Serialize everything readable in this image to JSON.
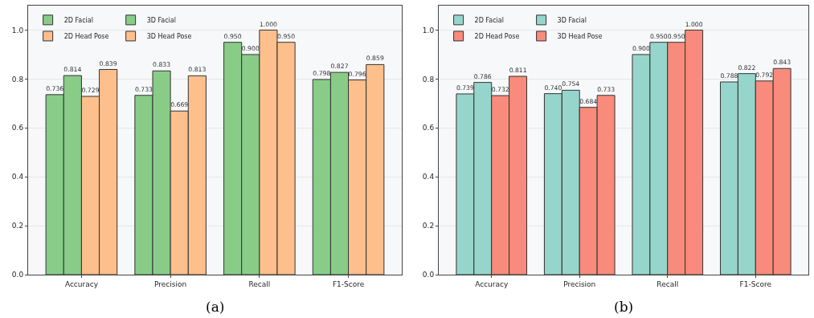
{
  "chart_data": [
    {
      "type": "bar",
      "categories": [
        "Accuracy",
        "Precision",
        "Recall",
        "F1-Score"
      ],
      "series": [
        {
          "name": "2D Facial",
          "color": "#88cc88",
          "values": [
            0.736,
            0.733,
            0.95,
            0.798
          ],
          "value_labels": [
            "0.736",
            "0.733",
            "0.950",
            "0.798"
          ]
        },
        {
          "name": "3D Facial",
          "color": "#88cc88",
          "values": [
            0.814,
            0.833,
            0.9,
            0.827
          ],
          "value_labels": [
            "0.814",
            "0.833",
            "0.900",
            "0.827"
          ]
        },
        {
          "name": "2D Head Pose",
          "color": "#fdbf8c",
          "values": [
            0.729,
            0.669,
            1.0,
            0.796
          ],
          "value_labels": [
            "0.729",
            "0.669",
            "1.000",
            "0.796"
          ]
        },
        {
          "name": "3D Head Pose",
          "color": "#fdbf8c",
          "values": [
            0.839,
            0.813,
            0.95,
            0.859
          ],
          "value_labels": [
            "0.839",
            "0.813",
            "0.950",
            "0.859"
          ]
        }
      ],
      "ylim": [
        0,
        1.1
      ],
      "yticks": [
        {
          "value": 0,
          "label": "0.0"
        },
        {
          "value": 0.2,
          "label": "0.2"
        },
        {
          "value": 0.4,
          "label": "0.4"
        },
        {
          "value": 0.6,
          "label": "0.6"
        },
        {
          "value": 0.8,
          "label": "0.8"
        },
        {
          "value": 1,
          "label": "1.0"
        }
      ],
      "grid": "y",
      "legend": "top left",
      "annotations": [
        "(a)"
      ]
    },
    {
      "type": "bar",
      "categories": [
        "Accuracy",
        "Precision",
        "Recall",
        "F1-Score"
      ],
      "series": [
        {
          "name": "2D Facial",
          "color": "#96d5cb",
          "values": [
            0.739,
            0.74,
            0.9,
            0.788
          ],
          "value_labels": [
            "0.739",
            "0.740",
            "0.900",
            "0.788"
          ]
        },
        {
          "name": "3D Facial",
          "color": "#96d5cb",
          "values": [
            0.786,
            0.754,
            0.95,
            0.822
          ],
          "value_labels": [
            "0.786",
            "0.754",
            "0.950",
            "0.822"
          ]
        },
        {
          "name": "2D Head Pose",
          "color": "#f98b7c",
          "values": [
            0.732,
            0.684,
            0.95,
            0.792
          ],
          "value_labels": [
            "0.732",
            "0.684",
            "0.950",
            "0.792"
          ]
        },
        {
          "name": "3D Head Pose",
          "color": "#f98b7c",
          "values": [
            0.811,
            0.733,
            1.0,
            0.843
          ],
          "value_labels": [
            "0.811",
            "0.733",
            "1.000",
            "0.843"
          ]
        }
      ],
      "ylim": [
        0,
        1.1
      ],
      "yticks": [
        {
          "value": 0,
          "label": "0.0"
        },
        {
          "value": 0.2,
          "label": "0.2"
        },
        {
          "value": 0.4,
          "label": "0.4"
        },
        {
          "value": 0.6,
          "label": "0.6"
        },
        {
          "value": 0.8,
          "label": "0.8"
        },
        {
          "value": 1,
          "label": "1.0"
        }
      ],
      "grid": "y",
      "legend": "top left",
      "annotations": [
        "(b)"
      ]
    }
  ]
}
